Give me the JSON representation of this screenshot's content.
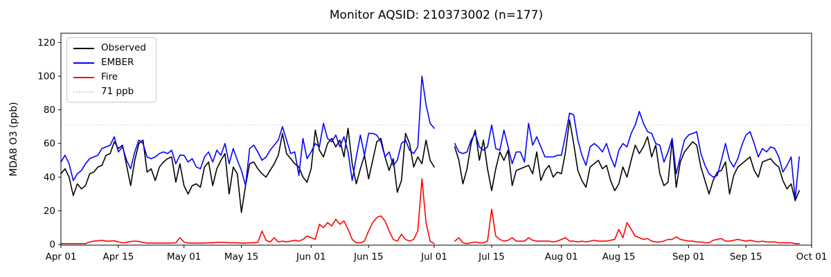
{
  "chart_data": {
    "type": "line",
    "title": "Monitor AQSID: 210373002 (n=177)",
    "ylabel": "MDA8 O3 (ppb)",
    "xlabel": "",
    "grid": false,
    "legend_position": "upper left",
    "ylim": [
      -0.4,
      125.5
    ],
    "xlim_days": [
      0,
      183
    ],
    "x_unit": "days since Apr 01",
    "yticks": [
      0,
      20,
      40,
      60,
      80,
      100,
      120
    ],
    "xticks": [
      {
        "day": 0,
        "label": "Apr 01"
      },
      {
        "day": 14,
        "label": "Apr 15"
      },
      {
        "day": 30,
        "label": "May 01"
      },
      {
        "day": 44,
        "label": "May 15"
      },
      {
        "day": 61,
        "label": "Jun 01"
      },
      {
        "day": 75,
        "label": "Jun 15"
      },
      {
        "day": 91,
        "label": "Jul 01"
      },
      {
        "day": 105,
        "label": "Jul 15"
      },
      {
        "day": 122,
        "label": "Aug 01"
      },
      {
        "day": 136,
        "label": "Aug 15"
      },
      {
        "day": 153,
        "label": "Sep 01"
      },
      {
        "day": 167,
        "label": "Sep 15"
      },
      {
        "day": 183,
        "label": "Oct 01"
      }
    ],
    "reference_line": {
      "value": 71,
      "label": "71 ppb",
      "color": "#d3d3d3",
      "style": "dotted"
    },
    "legend": [
      {
        "label": "Observed",
        "color": "#000000",
        "style": "solid"
      },
      {
        "label": "EMBER",
        "color": "#0000ff",
        "style": "solid"
      },
      {
        "label": "Fire",
        "color": "#ff0000",
        "style": "solid"
      },
      {
        "label": "71 ppb",
        "color": "#d3d3d3",
        "style": "dotted"
      }
    ],
    "series": [
      {
        "name": "Observed",
        "color": "#000000",
        "values": [
          42,
          45,
          40,
          29,
          36,
          33,
          35,
          42,
          43,
          46,
          47,
          53,
          54,
          61,
          57,
          59,
          47,
          35,
          50,
          60,
          62,
          43,
          45,
          38,
          46,
          49,
          51,
          52,
          37,
          48,
          35,
          30,
          35,
          36,
          34,
          46,
          49,
          35,
          45,
          50,
          54,
          30,
          46,
          42,
          19,
          35,
          48,
          49,
          45,
          42,
          40,
          44,
          48,
          53,
          66,
          54,
          51,
          48,
          46,
          40,
          37,
          45,
          68,
          56,
          52,
          60,
          63,
          58,
          62,
          52,
          69,
          48,
          36,
          45,
          53,
          39,
          50,
          61,
          63,
          52,
          44,
          51,
          31,
          38,
          66,
          60,
          46,
          52,
          48,
          62,
          50,
          46,
          null,
          null,
          null,
          null,
          58,
          50,
          36,
          45,
          60,
          68,
          50,
          62,
          45,
          32,
          45,
          55,
          50,
          56,
          35,
          44,
          45,
          46,
          47,
          42,
          55,
          38,
          44,
          47,
          40,
          43,
          42,
          55,
          74,
          60,
          44,
          38,
          34,
          46,
          48,
          50,
          45,
          47,
          38,
          32,
          36,
          46,
          40,
          50,
          59,
          54,
          58,
          64,
          52,
          59,
          42,
          35,
          37,
          62,
          34,
          49,
          55,
          58,
          61,
          59,
          46,
          38,
          30,
          38,
          43,
          44,
          49,
          30,
          41,
          46,
          48,
          50,
          52,
          44,
          40,
          49,
          50,
          51,
          48,
          46,
          38,
          33,
          36,
          26,
          32
        ]
      },
      {
        "name": "EMBER",
        "color": "#0000ff",
        "values": [
          49,
          53,
          48,
          38,
          42,
          44,
          48,
          51,
          52,
          53,
          57,
          58,
          59,
          64,
          55,
          58,
          50,
          45,
          55,
          62,
          60,
          52,
          51,
          52,
          54,
          55,
          54,
          56,
          48,
          53,
          53,
          49,
          51,
          46,
          45,
          52,
          55,
          49,
          56,
          53,
          60,
          48,
          57,
          50,
          44,
          35,
          57,
          59,
          55,
          50,
          52,
          56,
          59,
          62,
          70,
          62,
          54,
          55,
          41,
          63,
          51,
          55,
          60,
          58,
          72,
          63,
          61,
          65,
          58,
          64,
          55,
          38,
          52,
          65,
          53,
          66,
          66,
          65,
          61,
          52,
          55,
          47,
          50,
          60,
          62,
          56,
          54,
          58,
          100,
          83,
          72,
          69,
          null,
          null,
          null,
          null,
          60,
          55,
          54,
          55,
          62,
          66,
          58,
          56,
          58,
          71,
          57,
          56,
          68,
          58,
          48,
          55,
          55,
          49,
          72,
          59,
          64,
          58,
          52,
          52,
          52,
          53,
          53,
          65,
          78,
          77,
          62,
          53,
          47,
          58,
          60,
          58,
          55,
          60,
          52,
          46,
          56,
          60,
          58,
          66,
          71,
          79,
          72,
          67,
          66,
          60,
          59,
          49,
          55,
          63,
          42,
          52,
          62,
          65,
          66,
          67,
          54,
          47,
          42,
          40,
          41,
          50,
          60,
          50,
          46,
          51,
          59,
          65,
          67,
          60,
          52,
          57,
          55,
          58,
          57,
          52,
          43,
          47,
          52,
          27,
          52
        ]
      },
      {
        "name": "Fire",
        "color": "#ff0000",
        "values": [
          0.5,
          0.5,
          0.5,
          0.5,
          0.5,
          0.5,
          0.5,
          1.5,
          2,
          2.2,
          2.5,
          2,
          2,
          2.2,
          1.5,
          1,
          1.2,
          1.8,
          2,
          1.8,
          1.2,
          0.8,
          0.8,
          0.8,
          0.8,
          0.8,
          0.8,
          0.8,
          1,
          4,
          1.5,
          0.8,
          0.8,
          0.8,
          0.8,
          0.8,
          1,
          1,
          1.2,
          1.2,
          1.2,
          1,
          1,
          1,
          0.8,
          0.8,
          1,
          1,
          1.2,
          8,
          2.5,
          1.5,
          4,
          1.5,
          2,
          1.5,
          2,
          2.5,
          2,
          3,
          5,
          4,
          3,
          12,
          10,
          13,
          11,
          15,
          12,
          14,
          9,
          3,
          1,
          1,
          2,
          8,
          13,
          16,
          17,
          14,
          8,
          3,
          2,
          6,
          3,
          2,
          3,
          8,
          39,
          13,
          2,
          0.5,
          null,
          null,
          null,
          null,
          2,
          4,
          1,
          0.5,
          1,
          1.5,
          1,
          1,
          2,
          21,
          5,
          3,
          2,
          2.5,
          4,
          2,
          2,
          2,
          4,
          2.5,
          2,
          2,
          2,
          2,
          1.5,
          2,
          3,
          4,
          2,
          2,
          1.5,
          2,
          1.5,
          2,
          2.5,
          2,
          2,
          2,
          2.5,
          3,
          9,
          4,
          13,
          9,
          5,
          4,
          3,
          3.5,
          2,
          1.5,
          1.5,
          2,
          3,
          3,
          4.5,
          3,
          2.5,
          2,
          2,
          1.5,
          1.5,
          1,
          1,
          2.5,
          3,
          3.5,
          2,
          2,
          2.5,
          3,
          2.5,
          2,
          2.5,
          2,
          1.5,
          2,
          1.5,
          1.5,
          1.5,
          1,
          1,
          1,
          1,
          0.5,
          0.5
        ]
      }
    ]
  }
}
